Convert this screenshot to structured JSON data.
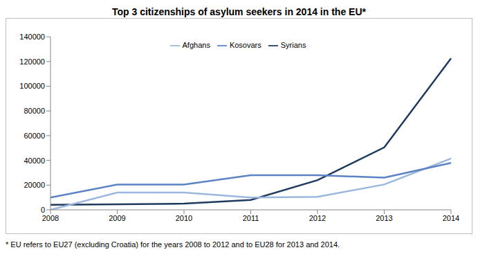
{
  "chart_data": {
    "type": "line",
    "title": "Top 3 citizenships of asylum seekers in 2014 in the EU*",
    "footnote": "* EU refers to EU27 (excluding Croatia) for the years 2008 to 2012 and to EU28 for 2013 and 2014.",
    "categories": [
      "2008",
      "2009",
      "2010",
      "2011",
      "2012",
      "2013",
      "2014"
    ],
    "series": [
      {
        "name": "Syrians",
        "color": "#1f3a5f",
        "values": [
          4000,
          4500,
          5000,
          8000,
          24000,
          50500,
          122500
        ]
      },
      {
        "name": "Afghans",
        "color": "#9bb7de",
        "values": [
          0,
          14000,
          14000,
          10000,
          10500,
          20500,
          41500
        ]
      },
      {
        "name": "Kosovars",
        "color": "#5b83c5",
        "values": [
          10000,
          20500,
          20500,
          28000,
          28000,
          26000,
          38000
        ]
      }
    ],
    "ylim": [
      0,
      140000
    ],
    "yticks": [
      0,
      20000,
      40000,
      60000,
      80000,
      100000,
      120000,
      140000
    ],
    "grid": false,
    "legend": "top"
  }
}
